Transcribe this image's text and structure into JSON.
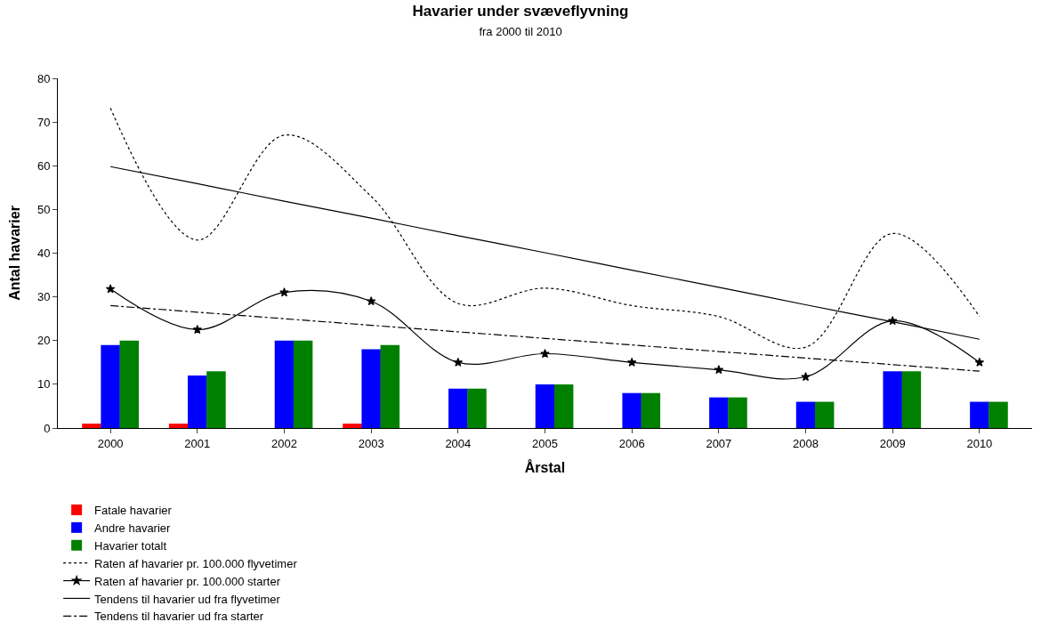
{
  "chart_data": {
    "type": "bar",
    "title": "Havarier under svæveflyvning",
    "subtitle": "fra 2000 til 2010",
    "xlabel": "Årstal",
    "ylabel": "Antal havarier",
    "categories": [
      "2000",
      "2001",
      "2002",
      "2003",
      "2004",
      "2005",
      "2006",
      "2007",
      "2008",
      "2009",
      "2010"
    ],
    "ylim": [
      0,
      80
    ],
    "yticks": [
      0,
      10,
      20,
      30,
      40,
      50,
      60,
      70,
      80
    ],
    "grid": false,
    "legend": "bottom",
    "series": [
      {
        "name": "Fatale havarier",
        "color": "#ff0000",
        "values": [
          1,
          1,
          0,
          1,
          0,
          0,
          0,
          0,
          0,
          0,
          0
        ]
      },
      {
        "name": "Andre havarier",
        "color": "#0000ff",
        "values": [
          19,
          12,
          20,
          18,
          9,
          10,
          8,
          7,
          6,
          13,
          6
        ]
      },
      {
        "name": "Havarier totalt",
        "color": "#008000",
        "values": [
          20,
          13,
          20,
          19,
          9,
          10,
          8,
          7,
          6,
          13,
          6
        ]
      },
      {
        "name": "Raten af havarier pr. 100.000 flyvetimer",
        "type": "line",
        "color": "#000000",
        "line_style": "dotted",
        "marker": "none",
        "values": [
          73.2,
          43,
          67,
          53,
          28.5,
          32,
          28,
          25.5,
          18.5,
          44.5,
          25.5
        ]
      },
      {
        "name": "Raten af havarier pr. 100.000 starter",
        "type": "line",
        "color": "#000000",
        "line_style": "solid",
        "marker": "star",
        "values": [
          31.8,
          22.5,
          31,
          29,
          15,
          17,
          15,
          13.3,
          11.7,
          24.5,
          15
        ]
      },
      {
        "name": "Tendens til havarier ud fra flyvetimer",
        "type": "line",
        "color": "#000000",
        "line_style": "solid",
        "marker": "none",
        "values": [
          59.8,
          55.9,
          51.9,
          48.0,
          44.0,
          40.1,
          36.1,
          32.2,
          28.2,
          24.3,
          20.3
        ]
      },
      {
        "name": "Tendens til havarier ud fra starter",
        "type": "line",
        "color": "#000000",
        "line_style": "dashdot",
        "marker": "none",
        "values": [
          28,
          26.5,
          25,
          23.5,
          22,
          20.5,
          19,
          17.5,
          16,
          14.5,
          13
        ]
      }
    ]
  }
}
